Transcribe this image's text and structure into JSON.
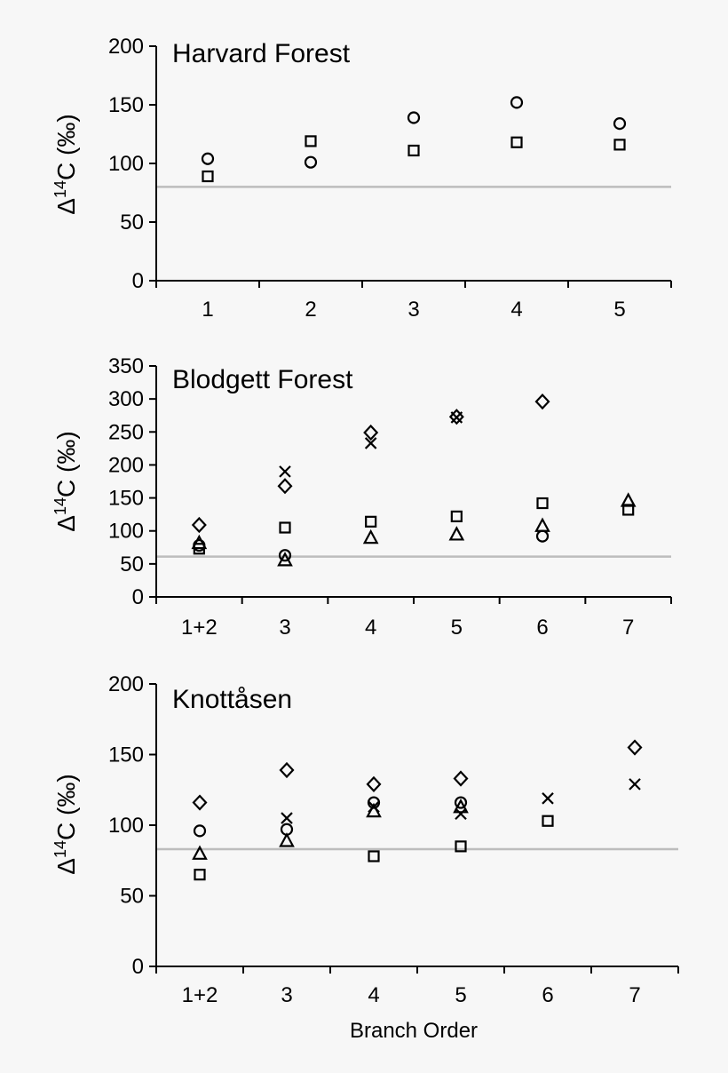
{
  "colors": {
    "axis": "#000000",
    "reference_line": "#bdbdbd",
    "marker": "#000000",
    "background": "#f7f7f7"
  },
  "chart_data": [
    {
      "type": "scatter",
      "title": "Harvard Forest",
      "ylabel": {
        "prefix": "Δ",
        "sup": "14",
        "rest": "C (‰)"
      },
      "xlabel": "",
      "categories": [
        "1",
        "2",
        "3",
        "4",
        "5"
      ],
      "ylim": [
        0,
        200
      ],
      "yticks": [
        0,
        50,
        100,
        150,
        200
      ],
      "reference_line": 80,
      "grid": false,
      "points": [
        {
          "x": "1",
          "y": 104,
          "marker": "circle"
        },
        {
          "x": "1",
          "y": 89,
          "marker": "square"
        },
        {
          "x": "2",
          "y": 119,
          "marker": "square"
        },
        {
          "x": "2",
          "y": 101,
          "marker": "circle"
        },
        {
          "x": "3",
          "y": 139,
          "marker": "circle"
        },
        {
          "x": "3",
          "y": 111,
          "marker": "square"
        },
        {
          "x": "4",
          "y": 152,
          "marker": "circle"
        },
        {
          "x": "4",
          "y": 118,
          "marker": "square"
        },
        {
          "x": "5",
          "y": 134,
          "marker": "circle"
        },
        {
          "x": "5",
          "y": 116,
          "marker": "square"
        }
      ]
    },
    {
      "type": "scatter",
      "title": "Blodgett Forest",
      "ylabel": {
        "prefix": "Δ",
        "sup": "14",
        "rest": "C (‰)"
      },
      "xlabel": "",
      "categories": [
        "1+2",
        "3",
        "4",
        "5",
        "6",
        "7"
      ],
      "ylim": [
        0,
        350
      ],
      "yticks": [
        0,
        50,
        100,
        150,
        200,
        250,
        300,
        350
      ],
      "reference_line": 61,
      "grid": false,
      "points": [
        {
          "x": "1+2",
          "y": 109,
          "marker": "diamond"
        },
        {
          "x": "1+2",
          "y": 82,
          "marker": "triangle"
        },
        {
          "x": "1+2",
          "y": 78,
          "marker": "circle"
        },
        {
          "x": "1+2",
          "y": 73,
          "marker": "square"
        },
        {
          "x": "3",
          "y": 190,
          "marker": "cross"
        },
        {
          "x": "3",
          "y": 168,
          "marker": "diamond"
        },
        {
          "x": "3",
          "y": 105,
          "marker": "square"
        },
        {
          "x": "3",
          "y": 63,
          "marker": "circle"
        },
        {
          "x": "3",
          "y": 56,
          "marker": "triangle"
        },
        {
          "x": "4",
          "y": 249,
          "marker": "diamond"
        },
        {
          "x": "4",
          "y": 233,
          "marker": "cross"
        },
        {
          "x": "4",
          "y": 114,
          "marker": "square"
        },
        {
          "x": "4",
          "y": 90,
          "marker": "triangle"
        },
        {
          "x": "5",
          "y": 273,
          "marker": "diamond"
        },
        {
          "x": "5",
          "y": 272,
          "marker": "cross"
        },
        {
          "x": "5",
          "y": 122,
          "marker": "square"
        },
        {
          "x": "5",
          "y": 95,
          "marker": "triangle"
        },
        {
          "x": "6",
          "y": 296,
          "marker": "diamond"
        },
        {
          "x": "6",
          "y": 142,
          "marker": "square"
        },
        {
          "x": "6",
          "y": 108,
          "marker": "triangle"
        },
        {
          "x": "6",
          "y": 92,
          "marker": "circle"
        },
        {
          "x": "7",
          "y": 146,
          "marker": "triangle"
        },
        {
          "x": "7",
          "y": 132,
          "marker": "square"
        }
      ]
    },
    {
      "type": "scatter",
      "title": "Knottåsen",
      "ylabel": {
        "prefix": "Δ",
        "sup": "14",
        "rest": "C (‰)"
      },
      "xlabel": "Branch Order",
      "categories": [
        "1+2",
        "3",
        "4",
        "5",
        "6",
        "7"
      ],
      "ylim": [
        0,
        200
      ],
      "yticks": [
        0,
        50,
        100,
        150,
        200
      ],
      "reference_line": 83,
      "grid": false,
      "points": [
        {
          "x": "1+2",
          "y": 116,
          "marker": "diamond"
        },
        {
          "x": "1+2",
          "y": 96,
          "marker": "circle"
        },
        {
          "x": "1+2",
          "y": 80,
          "marker": "triangle"
        },
        {
          "x": "1+2",
          "y": 65,
          "marker": "square"
        },
        {
          "x": "3",
          "y": 139,
          "marker": "diamond"
        },
        {
          "x": "3",
          "y": 105,
          "marker": "cross"
        },
        {
          "x": "3",
          "y": 97,
          "marker": "circle"
        },
        {
          "x": "3",
          "y": 89,
          "marker": "triangle"
        },
        {
          "x": "4",
          "y": 129,
          "marker": "diamond"
        },
        {
          "x": "4",
          "y": 116,
          "marker": "circle"
        },
        {
          "x": "4",
          "y": 113,
          "marker": "cross"
        },
        {
          "x": "4",
          "y": 110,
          "marker": "triangle"
        },
        {
          "x": "4",
          "y": 78,
          "marker": "square"
        },
        {
          "x": "5",
          "y": 133,
          "marker": "diamond"
        },
        {
          "x": "5",
          "y": 116,
          "marker": "circle"
        },
        {
          "x": "5",
          "y": 113,
          "marker": "triangle"
        },
        {
          "x": "5",
          "y": 108,
          "marker": "cross"
        },
        {
          "x": "5",
          "y": 85,
          "marker": "square"
        },
        {
          "x": "6",
          "y": 119,
          "marker": "cross"
        },
        {
          "x": "6",
          "y": 103,
          "marker": "square"
        },
        {
          "x": "7",
          "y": 155,
          "marker": "diamond"
        },
        {
          "x": "7",
          "y": 129,
          "marker": "cross"
        }
      ]
    }
  ]
}
